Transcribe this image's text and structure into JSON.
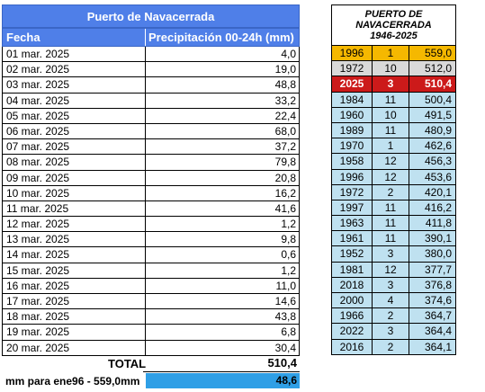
{
  "left": {
    "title": "Puerto de Navacerrada",
    "col_date": "Fecha",
    "col_precip": "Precipitación 00-24h (mm)",
    "rows": [
      {
        "date": "01 mar. 2025",
        "value": "4,0"
      },
      {
        "date": "02 mar. 2025",
        "value": "19,0"
      },
      {
        "date": "03 mar. 2025",
        "value": "48,8"
      },
      {
        "date": "04 mar. 2025",
        "value": "33,2"
      },
      {
        "date": "05 mar. 2025",
        "value": "22,4"
      },
      {
        "date": "06 mar. 2025",
        "value": "68,0"
      },
      {
        "date": "07 mar. 2025",
        "value": "37,2"
      },
      {
        "date": "08 mar. 2025",
        "value": "79,8"
      },
      {
        "date": "09 mar. 2025",
        "value": "20,8"
      },
      {
        "date": "10 mar. 2025",
        "value": "16,2"
      },
      {
        "date": "11 mar. 2025",
        "value": "41,6"
      },
      {
        "date": "12 mar. 2025",
        "value": "1,2"
      },
      {
        "date": "13 mar. 2025",
        "value": "9,8"
      },
      {
        "date": "14 mar. 2025",
        "value": "0,6"
      },
      {
        "date": "15 mar. 2025",
        "value": "1,2"
      },
      {
        "date": "16 mar. 2025",
        "value": "11,0"
      },
      {
        "date": "17 mar. 2025",
        "value": "14,6"
      },
      {
        "date": "18 mar. 2025",
        "value": "43,8"
      },
      {
        "date": "19 mar. 2025",
        "value": "6,8"
      },
      {
        "date": "20 mar. 2025",
        "value": "30,4"
      }
    ],
    "total_label": "TOTAL",
    "total_value": "510,4",
    "mm_label": "mm para ene96 - 559,0mm",
    "mm_value": "48,6"
  },
  "right": {
    "title": "PUERTO DE NAVACERRADA",
    "years": "1946-2025",
    "rows": [
      {
        "year": "1996",
        "month": "1",
        "mm": "559,0",
        "style": "gold"
      },
      {
        "year": "1972",
        "month": "10",
        "mm": "512,0",
        "style": "grey"
      },
      {
        "year": "2025",
        "month": "3",
        "mm": "510,4",
        "style": "red"
      },
      {
        "year": "1984",
        "month": "11",
        "mm": "500,4",
        "style": "normal"
      },
      {
        "year": "1960",
        "month": "10",
        "mm": "491,5",
        "style": "normal"
      },
      {
        "year": "1989",
        "month": "11",
        "mm": "480,9",
        "style": "normal"
      },
      {
        "year": "1970",
        "month": "1",
        "mm": "462,6",
        "style": "normal"
      },
      {
        "year": "1958",
        "month": "12",
        "mm": "456,3",
        "style": "normal"
      },
      {
        "year": "1996",
        "month": "12",
        "mm": "453,6",
        "style": "normal"
      },
      {
        "year": "1972",
        "month": "2",
        "mm": "420,1",
        "style": "normal"
      },
      {
        "year": "1997",
        "month": "11",
        "mm": "416,2",
        "style": "normal"
      },
      {
        "year": "1963",
        "month": "11",
        "mm": "411,8",
        "style": "normal"
      },
      {
        "year": "1961",
        "month": "11",
        "mm": "390,1",
        "style": "normal"
      },
      {
        "year": "1952",
        "month": "3",
        "mm": "380,0",
        "style": "normal"
      },
      {
        "year": "1981",
        "month": "12",
        "mm": "377,7",
        "style": "normal"
      },
      {
        "year": "2018",
        "month": "3",
        "mm": "376,8",
        "style": "normal"
      },
      {
        "year": "2000",
        "month": "4",
        "mm": "374,6",
        "style": "normal"
      },
      {
        "year": "1966",
        "month": "2",
        "mm": "364,7",
        "style": "normal"
      },
      {
        "year": "2022",
        "month": "3",
        "mm": "364,4",
        "style": "normal"
      },
      {
        "year": "2016",
        "month": "2",
        "mm": "364,1",
        "style": "normal"
      }
    ]
  }
}
